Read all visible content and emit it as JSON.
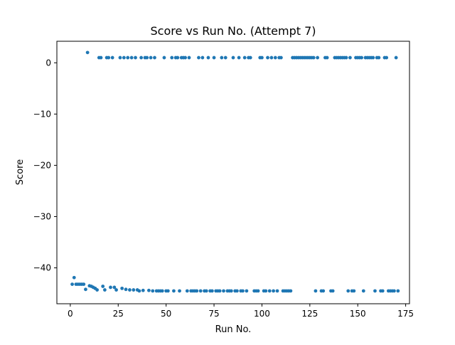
{
  "chart_data": {
    "type": "scatter",
    "title": "Score vs Run No. (Attempt 7)",
    "xlabel": "Run No.",
    "ylabel": "Score",
    "xlim": [
      -7,
      177
    ],
    "ylim": [
      -47,
      4.2
    ],
    "xticks": [
      0,
      25,
      50,
      75,
      100,
      125,
      150,
      175
    ],
    "yticks": [
      0,
      -10,
      -20,
      -30,
      -40
    ],
    "ytick_labels": [
      "0",
      "−10",
      "−20",
      "−30",
      "−40"
    ],
    "grid": false,
    "legend": "none",
    "marker_color": "#1f77b4",
    "series": [
      {
        "points": [
          [
            1,
            -43.2
          ],
          [
            2,
            -41.9
          ],
          [
            3,
            -43.2
          ],
          [
            4,
            -43.2
          ],
          [
            5,
            -43.2
          ],
          [
            6,
            -43.2
          ],
          [
            7,
            -43.2
          ],
          [
            8,
            -44.2
          ],
          [
            9,
            2.0
          ],
          [
            10,
            -43.5
          ],
          [
            11,
            -43.6
          ],
          [
            12,
            -43.8
          ],
          [
            13,
            -44.0
          ],
          [
            14,
            -44.3
          ],
          [
            15,
            1.0
          ],
          [
            16,
            1.0
          ],
          [
            17,
            -43.6
          ],
          [
            18,
            -44.3
          ],
          [
            19,
            1.0
          ],
          [
            20,
            1.0
          ],
          [
            21,
            -43.8
          ],
          [
            22,
            1.0
          ],
          [
            23,
            -43.8
          ],
          [
            24,
            -44.3
          ],
          [
            26,
            1.0
          ],
          [
            27,
            -44.0
          ],
          [
            28,
            1.0
          ],
          [
            29,
            -44.2
          ],
          [
            30,
            1.0
          ],
          [
            31,
            -44.3
          ],
          [
            32,
            1.0
          ],
          [
            33,
            -44.3
          ],
          [
            34,
            1.0
          ],
          [
            35,
            -44.3
          ],
          [
            36,
            -44.5
          ],
          [
            37,
            1.0
          ],
          [
            38,
            -44.4
          ],
          [
            39,
            1.0
          ],
          [
            40,
            1.0
          ],
          [
            41,
            -44.4
          ],
          [
            42,
            1.0
          ],
          [
            43,
            -44.5
          ],
          [
            44,
            1.0
          ],
          [
            45,
            -44.5
          ],
          [
            46,
            -44.5
          ],
          [
            47,
            -44.5
          ],
          [
            48,
            -44.5
          ],
          [
            49,
            1.0
          ],
          [
            50,
            -44.5
          ],
          [
            51,
            -44.5
          ],
          [
            53,
            1.0
          ],
          [
            54,
            -44.5
          ],
          [
            55,
            1.0
          ],
          [
            56,
            1.0
          ],
          [
            57,
            -44.5
          ],
          [
            58,
            1.0
          ],
          [
            59,
            1.0
          ],
          [
            60,
            1.0
          ],
          [
            61,
            -44.5
          ],
          [
            62,
            1.0
          ],
          [
            63,
            -44.5
          ],
          [
            64,
            -44.5
          ],
          [
            65,
            -44.5
          ],
          [
            66,
            -44.5
          ],
          [
            67,
            1.0
          ],
          [
            68,
            -44.5
          ],
          [
            69,
            1.0
          ],
          [
            70,
            -44.5
          ],
          [
            71,
            -44.5
          ],
          [
            72,
            1.0
          ],
          [
            73,
            -44.5
          ],
          [
            74,
            -44.5
          ],
          [
            75,
            1.0
          ],
          [
            76,
            -44.5
          ],
          [
            77,
            -44.5
          ],
          [
            78,
            -44.5
          ],
          [
            79,
            1.0
          ],
          [
            80,
            -44.5
          ],
          [
            81,
            1.0
          ],
          [
            82,
            -44.5
          ],
          [
            83,
            -44.5
          ],
          [
            84,
            -44.5
          ],
          [
            85,
            1.0
          ],
          [
            86,
            -44.5
          ],
          [
            87,
            -44.5
          ],
          [
            88,
            1.0
          ],
          [
            89,
            -44.5
          ],
          [
            90,
            -44.5
          ],
          [
            91,
            1.0
          ],
          [
            92,
            -44.5
          ],
          [
            93,
            1.0
          ],
          [
            94,
            1.0
          ],
          [
            96,
            -44.5
          ],
          [
            97,
            -44.5
          ],
          [
            98,
            -44.5
          ],
          [
            99,
            1.0
          ],
          [
            100,
            1.0
          ],
          [
            101,
            -44.5
          ],
          [
            102,
            -44.5
          ],
          [
            103,
            1.0
          ],
          [
            104,
            -44.5
          ],
          [
            105,
            1.0
          ],
          [
            106,
            -44.5
          ],
          [
            107,
            1.0
          ],
          [
            108,
            -44.5
          ],
          [
            109,
            1.0
          ],
          [
            110,
            1.0
          ],
          [
            111,
            -44.5
          ],
          [
            112,
            -44.5
          ],
          [
            113,
            -44.5
          ],
          [
            114,
            -44.5
          ],
          [
            115,
            -44.5
          ],
          [
            116,
            1.0
          ],
          [
            117,
            1.0
          ],
          [
            118,
            1.0
          ],
          [
            119,
            1.0
          ],
          [
            120,
            1.0
          ],
          [
            121,
            1.0
          ],
          [
            122,
            1.0
          ],
          [
            123,
            1.0
          ],
          [
            124,
            1.0
          ],
          [
            125,
            1.0
          ],
          [
            126,
            1.0
          ],
          [
            127,
            1.0
          ],
          [
            128,
            -44.5
          ],
          [
            129,
            1.0
          ],
          [
            131,
            -44.5
          ],
          [
            132,
            -44.5
          ],
          [
            133,
            1.0
          ],
          [
            134,
            1.0
          ],
          [
            136,
            -44.5
          ],
          [
            137,
            -44.5
          ],
          [
            138,
            1.0
          ],
          [
            139,
            1.0
          ],
          [
            140,
            1.0
          ],
          [
            141,
            1.0
          ],
          [
            142,
            1.0
          ],
          [
            143,
            1.0
          ],
          [
            144,
            1.0
          ],
          [
            145,
            -44.5
          ],
          [
            146,
            1.0
          ],
          [
            147,
            -44.5
          ],
          [
            148,
            -44.5
          ],
          [
            149,
            1.0
          ],
          [
            150,
            1.0
          ],
          [
            151,
            1.0
          ],
          [
            152,
            1.0
          ],
          [
            153,
            -44.5
          ],
          [
            154,
            1.0
          ],
          [
            155,
            1.0
          ],
          [
            156,
            1.0
          ],
          [
            157,
            1.0
          ],
          [
            158,
            1.0
          ],
          [
            159,
            -44.5
          ],
          [
            160,
            1.0
          ],
          [
            161,
            1.0
          ],
          [
            162,
            -44.5
          ],
          [
            163,
            -44.5
          ],
          [
            164,
            1.0
          ],
          [
            165,
            1.0
          ],
          [
            166,
            -44.5
          ],
          [
            167,
            -44.5
          ],
          [
            168,
            -44.5
          ],
          [
            169,
            -44.5
          ],
          [
            170,
            1.0
          ],
          [
            171,
            -44.5
          ]
        ]
      }
    ]
  }
}
